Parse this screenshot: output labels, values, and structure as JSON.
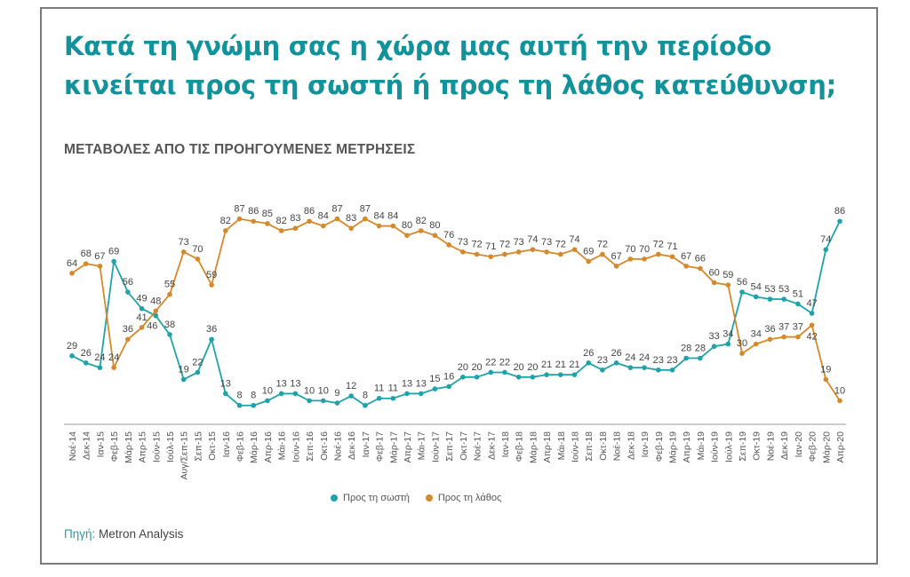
{
  "title_line1": "Κατά τη γνώμη σας η χώρα μας αυτή την περίοδο",
  "title_line2": "κινείται προς τη σωστή ή προς τη λάθος κατεύθυνση;",
  "source_label": "Πηγή:",
  "source_value": "Metron Analysis",
  "colors": {
    "right": "#1fa3a8",
    "wrong": "#d6892b",
    "title": "#12939b"
  },
  "chart_data": {
    "type": "line",
    "title": "ΜΕΤΑΒΟΛΕΣ ΑΠΟ ΤΙΣ ΠΡΟΗΓΟΥΜΕΝΕΣ ΜΕΤΡΗΣΕΙΣ",
    "xlabel": "",
    "ylabel": "",
    "ylim": [
      0,
      90
    ],
    "grid": false,
    "legend_position": "bottom",
    "categories": [
      "Νοέ-14",
      "Δεκ-14",
      "Ιαν-15",
      "Φεβ-15",
      "Μάρ-15",
      "Απρ-15",
      "Ιούν-15",
      "Ιούλ-15",
      "Αυγ/Σεπ-15",
      "Σεπ-15",
      "Οκτ-15",
      "Ιαν-16",
      "Φεβ-16",
      "Μάρ-16",
      "Απρ-16",
      "Μάι-16",
      "Ιούν-16",
      "Σεπ-16",
      "Οκτ-16",
      "Νοέ-16",
      "Δεκ-16",
      "Ιαν-17",
      "Φεβ-17",
      "Μάρ-17",
      "Απρ-17",
      "Μάι-17",
      "Ιούν-17",
      "Σεπ-17",
      "Οκτ-17",
      "Νοέ-17",
      "Δεκ-17",
      "Ιαν-18",
      "Φεβ-18",
      "Μάρ-18",
      "Απρ-18",
      "Μάι-18",
      "Ιούν-18",
      "Σεπ-18",
      "Οκτ-18",
      "Νοέ-18",
      "Δεκ-18",
      "Ιαν-19",
      "Φεβ-19",
      "Μάρ-19",
      "Απρ-19",
      "Μάι-19",
      "Ιούν-19",
      "Ιούλ-19",
      "Σεπ-19",
      "Οκτ-19",
      "Νοέ-19",
      "Δεκ-19",
      "Ιαν-20",
      "Φεβ-20",
      "Μάρ-20",
      "Απρ-20"
    ],
    "series": [
      {
        "name": "Προς τη σωστή",
        "key": "right",
        "values": [
          29,
          26,
          24,
          69,
          56,
          49,
          46,
          38,
          19,
          22,
          36,
          13,
          8,
          8,
          10,
          13,
          13,
          10,
          10,
          9,
          12,
          8,
          11,
          11,
          13,
          13,
          15,
          16,
          20,
          20,
          22,
          22,
          20,
          20,
          21,
          21,
          21,
          26,
          23,
          26,
          24,
          24,
          23,
          23,
          28,
          28,
          33,
          34,
          56,
          54,
          53,
          53,
          51,
          47,
          74,
          86
        ]
      },
      {
        "name": "Προς τη λάθος",
        "key": "wrong",
        "values": [
          64,
          68,
          67,
          24,
          36,
          41,
          48,
          55,
          73,
          70,
          59,
          82,
          87,
          86,
          85,
          82,
          83,
          86,
          84,
          87,
          83,
          87,
          84,
          84,
          80,
          82,
          80,
          76,
          73,
          72,
          71,
          72,
          73,
          74,
          73,
          72,
          74,
          69,
          72,
          67,
          70,
          70,
          72,
          71,
          67,
          66,
          60,
          59,
          30,
          34,
          36,
          37,
          37,
          42,
          19,
          10
        ]
      }
    ]
  }
}
